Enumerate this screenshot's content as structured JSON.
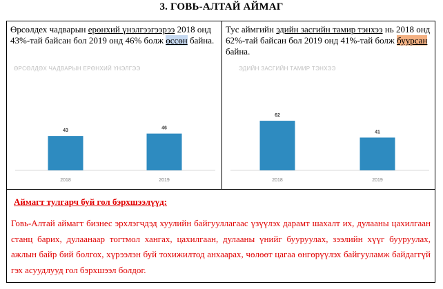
{
  "page": {
    "title": "3.  ГОВЬ-АЛТАЙ АЙМАГ"
  },
  "left": {
    "text": {
      "t1": "Өрсөлдех чадварын ",
      "t2": "ерөнхий үнэлгээгээрээ",
      "t3": "  2018 онд 43%-тай байсан бол 2019 онд 46% болж ",
      "t4": "өссөн",
      "t5": " байна."
    },
    "chart_data": {
      "type": "bar",
      "title": "ӨРСӨЛДӨХ ЧАДВАРЫН ЕРӨНХИЙ ҮНЭЛГЭЭ",
      "categories": [
        "2018",
        "2019"
      ],
      "values": [
        43,
        46
      ],
      "color": "#2e8bc0",
      "ylim": [
        0,
        100
      ],
      "grid": false
    }
  },
  "right": {
    "text": {
      "t1": "Тус аймгийн ",
      "t2": "эдийн засгийн тамир тэнхээ",
      "t3": " нь 2018 онд 62%-тай байсан бол 2019 онд 41%-тай болж ",
      "t4": "буурсан",
      "t5": " байна."
    },
    "chart_data": {
      "type": "bar",
      "title": "ЭДИЙН ЗАСГИЙН ТАМИР ТЭНХЭЭ",
      "categories": [
        "2018",
        "2019"
      ],
      "values": [
        62,
        41
      ],
      "color": "#2e8bc0",
      "ylim": [
        0,
        100
      ],
      "grid": false
    }
  },
  "notes": {
    "heading": "Аймагт тулгарч буй гол бэрхшээлүүд:",
    "body": "Говь-Алтай аймагт бизнес эрхлэгчдэд хуулийн байгууллагаас үзүүлэх дарамт шахалт их, дулааны цахилгаан станц барих, дулаанаар тогтмол хангах, цахилгаан, дулааны үнийг бууруулах, зээлийн хүүг бууруулах, ажлын байр бий болгох, хүрээлэн буй тохижилтод анхаарах, чөлөөт цагаа өнгөрүүлэх байгууламж байдаггүй гэх асуудлууд гол бэрхшээл болдог."
  }
}
